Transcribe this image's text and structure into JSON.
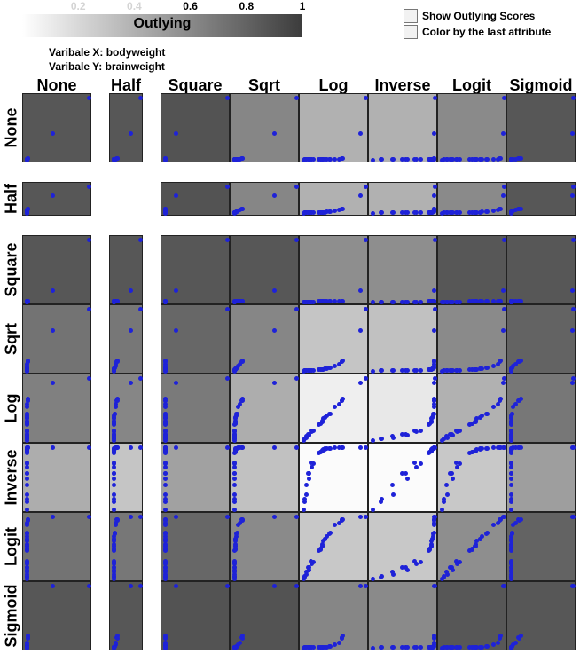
{
  "legend": {
    "title": "Outlying",
    "ticks": [
      {
        "label": "0.2",
        "value": 0.2
      },
      {
        "label": "0.4",
        "value": 0.4
      },
      {
        "label": "0.6",
        "value": 0.6
      },
      {
        "label": "0.8",
        "value": 0.8
      },
      {
        "label": "1",
        "value": 1.0
      }
    ],
    "color_low": "#ffffff",
    "color_high": "#3c3c3c"
  },
  "variables": {
    "x_text": "Varibale X: bodyweight",
    "y_text": "Varibale Y: brainweight"
  },
  "options": {
    "show_outlying_scores": "Show Outlying Scores",
    "color_by_last": "Color by the last attribute"
  },
  "colors": {
    "point": "#1e22d8",
    "border": "#222222"
  },
  "chart_data": {
    "type": "scatter",
    "title": "",
    "columns": [
      "None",
      "Half",
      "Square",
      "Sqrt",
      "Log",
      "Inverse",
      "Logit",
      "Sigmoid"
    ],
    "rows": [
      "None",
      "Half",
      "Square",
      "Sqrt",
      "Log",
      "Inverse",
      "Logit",
      "Sigmoid"
    ],
    "outlying_scores": [
      [
        0.86,
        0.86,
        0.88,
        0.62,
        0.4,
        0.4,
        0.6,
        0.86
      ],
      [
        0.86,
        null,
        0.88,
        0.62,
        0.4,
        0.4,
        0.6,
        0.86
      ],
      [
        0.86,
        0.86,
        0.86,
        0.86,
        0.58,
        0.58,
        0.86,
        0.86
      ],
      [
        0.72,
        0.7,
        0.78,
        0.62,
        0.3,
        0.32,
        0.6,
        0.8
      ],
      [
        0.65,
        0.62,
        0.68,
        0.42,
        0.08,
        0.12,
        0.4,
        0.7
      ],
      [
        0.42,
        0.3,
        0.48,
        0.32,
        0.02,
        0.02,
        0.28,
        0.5
      ],
      [
        0.72,
        0.7,
        0.78,
        0.6,
        0.28,
        0.28,
        0.58,
        0.8
      ],
      [
        0.86,
        0.86,
        0.88,
        0.88,
        0.62,
        0.6,
        0.86,
        0.86
      ]
    ]
  }
}
